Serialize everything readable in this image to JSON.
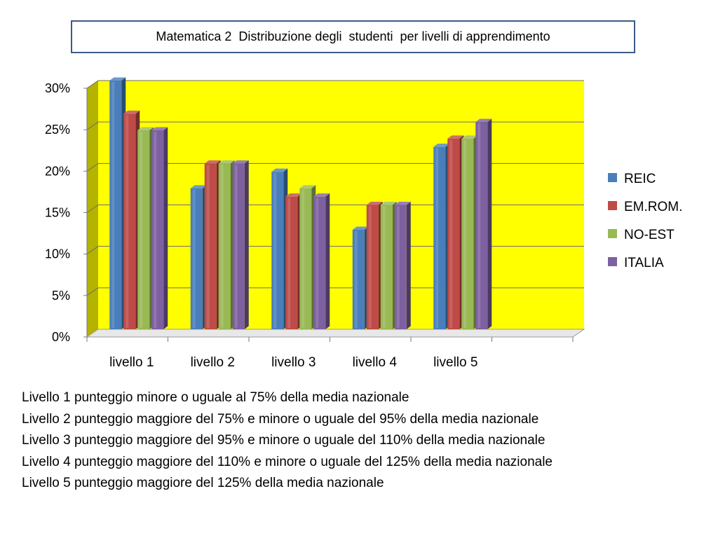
{
  "title": "Matematica 2  Distribuzione degli  studenti  per livelli di apprendimento",
  "chart_data": {
    "type": "bar",
    "categories": [
      "livello 1",
      "livello 2",
      "livello 3",
      "livello 4",
      "livello 5"
    ],
    "series": [
      {
        "name": "REIC",
        "values": [
          30,
          17,
          19,
          12,
          22
        ],
        "color": "#4a7ebb"
      },
      {
        "name": "EM.ROM.",
        "values": [
          26,
          20,
          16,
          15,
          23
        ],
        "color": "#be4b48"
      },
      {
        "name": "NO-EST",
        "values": [
          24,
          20,
          17,
          15,
          23
        ],
        "color": "#98b954"
      },
      {
        "name": "ITALIA",
        "values": [
          24,
          20,
          16,
          15,
          25
        ],
        "color": "#7d60a0"
      }
    ],
    "yticks": [
      "0%",
      "5%",
      "10%",
      "15%",
      "20%",
      "25%",
      "30%"
    ],
    "ylim": [
      0,
      30
    ],
    "value_unit": "%",
    "legend_position": "right",
    "grid": true,
    "plot_background": "#ffff00",
    "wall_side_color": "#b3b300"
  },
  "notes": [
    "Livello 1 punteggio minore o uguale al 75% della media nazionale",
    "Livello 2 punteggio maggiore del 75% e minore o uguale del 95% della media nazionale",
    "Livello 3 punteggio maggiore del 95% e minore o uguale del 110% della media nazionale",
    "Livello 4 punteggio maggiore del 110% e minore o uguale del 125% della media nazionale",
    "Livello 5 punteggio maggiore del 125% della media nazionale"
  ]
}
